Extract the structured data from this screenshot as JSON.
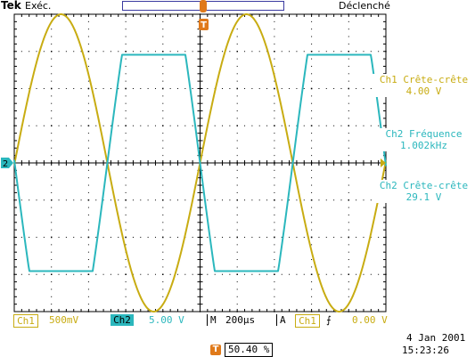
{
  "header": {
    "brand": "Tek",
    "acquisition_state": "Exéc.",
    "trigger_state": "Déclenché"
  },
  "measurements": [
    {
      "label": "Ch1 Crête-crête",
      "value": "4.00 V",
      "channel": "ch1"
    },
    {
      "label": "Ch2 Fréquence",
      "value": "1.002kHz",
      "channel": "ch2"
    },
    {
      "label": "Ch2 Crête-crête",
      "value": "29.1 V",
      "channel": "ch2"
    }
  ],
  "markers": {
    "trigger_glyph": "T",
    "ch2_ground": "2"
  },
  "status_bar": {
    "ch1_name": "Ch1",
    "ch1_scale": "500mV",
    "ch2_name": "Ch2",
    "ch2_scale": "5.00 V",
    "timebase_prefix": "M",
    "timebase": "200µs",
    "trigger_prefix": "A",
    "trigger_source": "Ch1",
    "trigger_slope_glyph": "⨍",
    "trigger_level": "0.00 V"
  },
  "footer": {
    "trigger_position": "50.40 %",
    "date": "4 Jan  2001",
    "time": "15:23:26"
  },
  "colors": {
    "ch1": "#c8ac12",
    "ch2": "#2bb7bd",
    "graticule": "#000000",
    "trigger_marker": "#e07a1a"
  },
  "waveforms": {
    "ch1": {
      "shape": "sine",
      "frequency_hz": 1002,
      "peak_to_peak_v": 4.0,
      "volts_per_div": 0.5
    },
    "ch2": {
      "shape": "clipped-sine",
      "frequency_hz": 1002,
      "peak_to_peak_v": 29.1,
      "volts_per_div": 5.0,
      "phase": "inverted"
    },
    "time_per_div_us": 200
  }
}
